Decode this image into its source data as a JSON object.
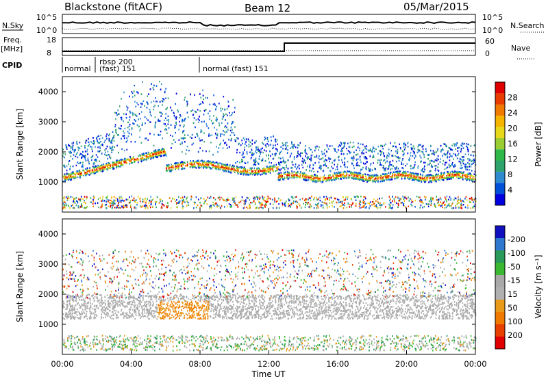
{
  "header": {
    "station": "Blackstone (fitACF)",
    "beam": "Beam 12",
    "date": "05/Mar/2015"
  },
  "summary_panels": {
    "nsky_label": "N.Sky",
    "nsearch_label": "N.Search",
    "noise_ticks": [
      "10^5",
      "10^0"
    ],
    "freq_label": "Freq.",
    "freq_unit": "[MHz]",
    "freq_ticks": [
      "18",
      "8"
    ],
    "nave_label": "Nave",
    "nave_ticks": [
      "60",
      "0"
    ],
    "cpid_label": "CPID",
    "cpid_segments": [
      "normal",
      "rbsp 200",
      "(fast) 151",
      "normal (fast) 151"
    ]
  },
  "chart_data": [
    {
      "type": "heatmap",
      "name": "power",
      "ylabel": "Slant Range [km]",
      "xlabel": "",
      "yticks": [
        "1000",
        "2000",
        "3000",
        "4000"
      ],
      "colorbar": {
        "label": "Power [dB]",
        "ticks": [
          "4",
          "8",
          "12",
          "16",
          "20",
          "24",
          "28"
        ],
        "colors": [
          "#0000e0",
          "#0050d8",
          "#2f8bd0",
          "#2ea26c",
          "#2fb84a",
          "#9acd32",
          "#e8d81a",
          "#f4b400",
          "#f07a00",
          "#e83c00",
          "#e00000"
        ]
      },
      "ylim": [
        0,
        4500
      ],
      "xlim": [
        "00:00",
        "24:00"
      ]
    },
    {
      "type": "heatmap",
      "name": "velocity",
      "ylabel": "Slant Range [km]",
      "xlabel": "Time UT",
      "yticks": [
        "1000",
        "2000",
        "3000",
        "4000"
      ],
      "xticks": [
        "00:00",
        "04:00",
        "08:00",
        "12:00",
        "16:00",
        "20:00",
        "00:00"
      ],
      "colorbar": {
        "label": "Velocity [m s⁻¹]",
        "ticks": [
          "200",
          "100",
          "50",
          "15",
          "-15",
          "-50",
          "-100",
          "-200"
        ],
        "colors": [
          "#1010c0",
          "#2f78d0",
          "#2a9a5a",
          "#3ab832",
          "#a8a8a8",
          "#b0b0b0",
          "#e89a18",
          "#f07a00",
          "#e84000",
          "#e00000"
        ]
      },
      "ylim": [
        0,
        4500
      ],
      "xlim": [
        "00:00",
        "24:00"
      ]
    }
  ]
}
